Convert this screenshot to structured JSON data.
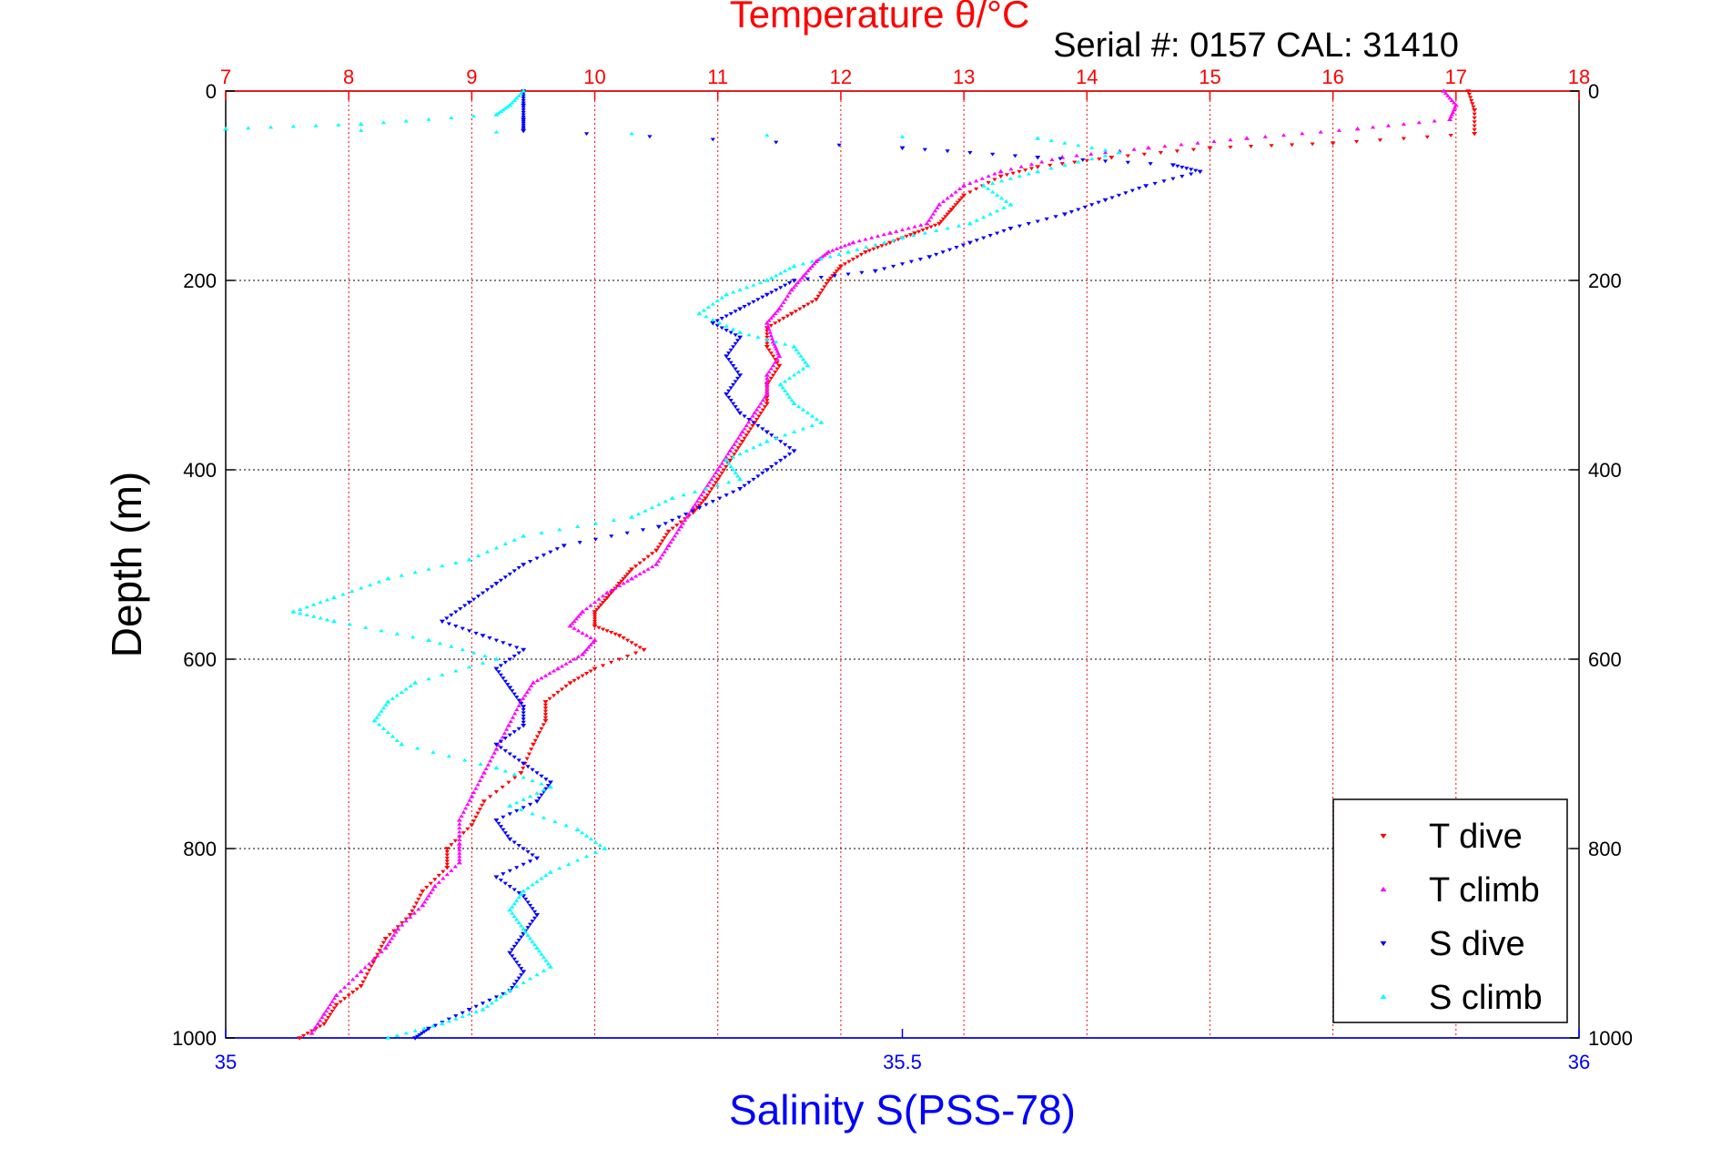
{
  "chart_data": {
    "type": "scatter",
    "title": "Temperature θ/°C",
    "subtitle": "Serial #: 0157  CAL: 31410",
    "xlabel_top": "Temperature θ/°C",
    "xlabel_bottom": "Salinity S(PSS-78)",
    "ylabel": "Depth (m)",
    "top_axis": {
      "range": [
        7,
        18
      ],
      "ticks": [
        "7",
        "8",
        "9",
        "10",
        "11",
        "12",
        "13",
        "14",
        "15",
        "16",
        "17",
        "18"
      ],
      "color": "#ff0000"
    },
    "bottom_axis": {
      "range": [
        35,
        36
      ],
      "ticks": [
        "35",
        "35.5",
        "36"
      ],
      "color": "#0000ff"
    },
    "y_axis": {
      "range": [
        0,
        1000
      ],
      "reversed": true,
      "ticks": [
        "0",
        "200",
        "400",
        "600",
        "800",
        "1000"
      ]
    },
    "grid": true,
    "legend_position": "bottom-right",
    "series": [
      {
        "name": "T dive",
        "axis": "temperature",
        "color": "#ff0000",
        "marker": "down-triangle",
        "points": [
          [
            17.1,
            0
          ],
          [
            17.15,
            20
          ],
          [
            17.15,
            45
          ],
          [
            16.0,
            55
          ],
          [
            15.0,
            60
          ],
          [
            14.2,
            70
          ],
          [
            13.6,
            80
          ],
          [
            13.3,
            90
          ],
          [
            13.0,
            110
          ],
          [
            12.9,
            125
          ],
          [
            12.8,
            140
          ],
          [
            12.6,
            150
          ],
          [
            12.4,
            160
          ],
          [
            12.2,
            170
          ],
          [
            12.0,
            185
          ],
          [
            11.9,
            200
          ],
          [
            11.8,
            220
          ],
          [
            11.6,
            235
          ],
          [
            11.4,
            250
          ],
          [
            11.4,
            270
          ],
          [
            11.5,
            290
          ],
          [
            11.4,
            310
          ],
          [
            11.4,
            330
          ],
          [
            11.3,
            350
          ],
          [
            11.2,
            370
          ],
          [
            11.1,
            390
          ],
          [
            11.0,
            410
          ],
          [
            10.9,
            430
          ],
          [
            10.8,
            445
          ],
          [
            10.6,
            465
          ],
          [
            10.5,
            485
          ],
          [
            10.3,
            505
          ],
          [
            10.2,
            520
          ],
          [
            10.1,
            535
          ],
          [
            10.0,
            550
          ],
          [
            10.0,
            565
          ],
          [
            10.2,
            575
          ],
          [
            10.4,
            590
          ],
          [
            10.0,
            610
          ],
          [
            9.8,
            625
          ],
          [
            9.6,
            645
          ],
          [
            9.6,
            665
          ],
          [
            9.5,
            690
          ],
          [
            9.4,
            720
          ],
          [
            9.1,
            750
          ],
          [
            9.0,
            775
          ],
          [
            8.8,
            800
          ],
          [
            8.8,
            820
          ],
          [
            8.6,
            845
          ],
          [
            8.5,
            870
          ],
          [
            8.3,
            895
          ],
          [
            8.2,
            920
          ],
          [
            8.1,
            945
          ],
          [
            7.9,
            965
          ],
          [
            7.8,
            985
          ],
          [
            7.6,
            1000
          ]
        ]
      },
      {
        "name": "T climb",
        "axis": "temperature",
        "color": "#ff00ff",
        "marker": "up-triangle",
        "points": [
          [
            16.9,
            0
          ],
          [
            17.0,
            15
          ],
          [
            16.95,
            30
          ],
          [
            16.2,
            40
          ],
          [
            15.3,
            50
          ],
          [
            14.5,
            60
          ],
          [
            13.8,
            70
          ],
          [
            13.3,
            85
          ],
          [
            13.0,
            100
          ],
          [
            12.8,
            120
          ],
          [
            12.7,
            140
          ],
          [
            12.4,
            150
          ],
          [
            12.1,
            160
          ],
          [
            11.9,
            170
          ],
          [
            11.8,
            180
          ],
          [
            11.7,
            195
          ],
          [
            11.6,
            210
          ],
          [
            11.5,
            230
          ],
          [
            11.4,
            245
          ],
          [
            11.45,
            265
          ],
          [
            11.5,
            280
          ],
          [
            11.4,
            300
          ],
          [
            11.4,
            320
          ],
          [
            11.3,
            340
          ],
          [
            11.2,
            360
          ],
          [
            11.1,
            380
          ],
          [
            11.0,
            400
          ],
          [
            10.9,
            420
          ],
          [
            10.8,
            440
          ],
          [
            10.7,
            460
          ],
          [
            10.6,
            480
          ],
          [
            10.5,
            500
          ],
          [
            10.3,
            515
          ],
          [
            10.1,
            530
          ],
          [
            9.9,
            550
          ],
          [
            9.8,
            565
          ],
          [
            10.0,
            580
          ],
          [
            9.9,
            595
          ],
          [
            9.7,
            610
          ],
          [
            9.5,
            625
          ],
          [
            9.4,
            645
          ],
          [
            9.3,
            670
          ],
          [
            9.2,
            695
          ],
          [
            9.1,
            720
          ],
          [
            9.0,
            745
          ],
          [
            8.9,
            770
          ],
          [
            8.9,
            795
          ],
          [
            8.9,
            815
          ],
          [
            8.7,
            840
          ],
          [
            8.6,
            860
          ],
          [
            8.4,
            885
          ],
          [
            8.3,
            905
          ],
          [
            8.1,
            930
          ],
          [
            7.9,
            955
          ],
          [
            7.8,
            975
          ],
          [
            7.7,
            995
          ]
        ]
      },
      {
        "name": "S dive",
        "axis": "salinity",
        "color": "#0000ff",
        "marker": "down-triangle",
        "points": [
          [
            35.22,
            0
          ],
          [
            35.22,
            15
          ],
          [
            35.22,
            30
          ],
          [
            35.22,
            42
          ],
          [
            35.5,
            60
          ],
          [
            35.6,
            70
          ],
          [
            35.7,
            78
          ],
          [
            35.72,
            85
          ],
          [
            35.68,
            100
          ],
          [
            35.65,
            115
          ],
          [
            35.62,
            130
          ],
          [
            35.58,
            145
          ],
          [
            35.55,
            160
          ],
          [
            35.52,
            175
          ],
          [
            35.48,
            190
          ],
          [
            35.42,
            200
          ],
          [
            35.4,
            215
          ],
          [
            35.38,
            230
          ],
          [
            35.36,
            245
          ],
          [
            35.38,
            260
          ],
          [
            35.37,
            280
          ],
          [
            35.38,
            300
          ],
          [
            35.37,
            320
          ],
          [
            35.38,
            340
          ],
          [
            35.4,
            360
          ],
          [
            35.42,
            380
          ],
          [
            35.4,
            400
          ],
          [
            35.38,
            420
          ],
          [
            35.35,
            440
          ],
          [
            35.32,
            460
          ],
          [
            35.25,
            480
          ],
          [
            35.22,
            500
          ],
          [
            35.2,
            520
          ],
          [
            35.18,
            540
          ],
          [
            35.16,
            560
          ],
          [
            35.19,
            575
          ],
          [
            35.22,
            590
          ],
          [
            35.2,
            610
          ],
          [
            35.21,
            630
          ],
          [
            35.22,
            650
          ],
          [
            35.22,
            670
          ],
          [
            35.2,
            690
          ],
          [
            35.22,
            710
          ],
          [
            35.24,
            730
          ],
          [
            35.23,
            750
          ],
          [
            35.2,
            770
          ],
          [
            35.21,
            790
          ],
          [
            35.23,
            810
          ],
          [
            35.2,
            830
          ],
          [
            35.22,
            850
          ],
          [
            35.23,
            870
          ],
          [
            35.22,
            890
          ],
          [
            35.21,
            910
          ],
          [
            35.22,
            930
          ],
          [
            35.21,
            950
          ],
          [
            35.18,
            970
          ],
          [
            35.15,
            990
          ],
          [
            35.14,
            1000
          ]
        ]
      },
      {
        "name": "S climb",
        "axis": "salinity",
        "color": "#00ffff",
        "marker": "up-triangle",
        "points": [
          [
            35.22,
            0
          ],
          [
            35.21,
            15
          ],
          [
            35.2,
            25
          ],
          [
            35.1,
            35
          ],
          [
            35.0,
            40
          ],
          [
            35.6,
            50
          ],
          [
            35.66,
            65
          ],
          [
            35.6,
            85
          ],
          [
            35.56,
            100
          ],
          [
            35.58,
            120
          ],
          [
            35.55,
            140
          ],
          [
            35.5,
            155
          ],
          [
            35.46,
            170
          ],
          [
            35.42,
            185
          ],
          [
            35.4,
            200
          ],
          [
            35.37,
            215
          ],
          [
            35.35,
            235
          ],
          [
            35.38,
            255
          ],
          [
            35.42,
            270
          ],
          [
            35.43,
            290
          ],
          [
            35.41,
            310
          ],
          [
            35.42,
            330
          ],
          [
            35.44,
            350
          ],
          [
            35.4,
            370
          ],
          [
            35.37,
            390
          ],
          [
            35.38,
            410
          ],
          [
            35.33,
            430
          ],
          [
            35.3,
            450
          ],
          [
            35.22,
            470
          ],
          [
            35.18,
            495
          ],
          [
            35.12,
            515
          ],
          [
            35.08,
            535
          ],
          [
            35.05,
            550
          ],
          [
            35.08,
            560
          ],
          [
            35.15,
            580
          ],
          [
            35.2,
            600
          ],
          [
            35.14,
            625
          ],
          [
            35.12,
            645
          ],
          [
            35.11,
            665
          ],
          [
            35.13,
            690
          ],
          [
            35.2,
            715
          ],
          [
            35.24,
            735
          ],
          [
            35.21,
            755
          ],
          [
            35.26,
            780
          ],
          [
            35.28,
            800
          ],
          [
            35.24,
            825
          ],
          [
            35.22,
            845
          ],
          [
            35.21,
            865
          ],
          [
            35.22,
            885
          ],
          [
            35.23,
            905
          ],
          [
            35.24,
            925
          ],
          [
            35.21,
            950
          ],
          [
            35.19,
            970
          ],
          [
            35.16,
            985
          ],
          [
            35.12,
            1000
          ]
        ]
      }
    ]
  }
}
